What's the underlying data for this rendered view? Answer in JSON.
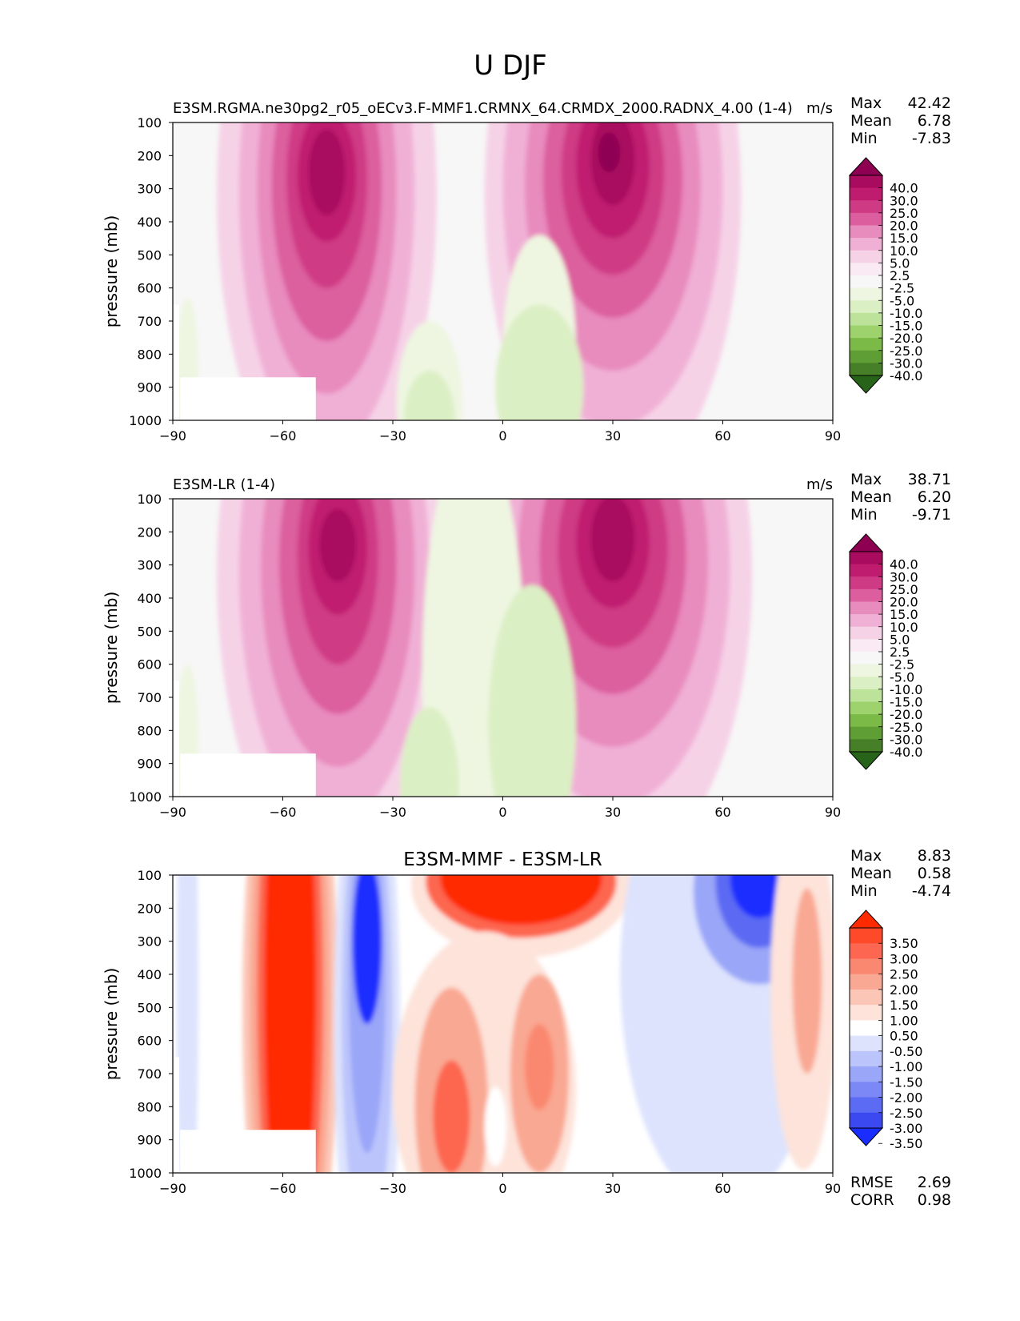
{
  "figure_title": "U DJF",
  "chart_data": [
    {
      "type": "contourf",
      "title": "",
      "left_title": "E3SM.RGMA.ne30pg2_r05_oECv3.F-MMF1.CRMNX_64.CRMDX_2000.RADNX_4.00 (1-4)",
      "units": "m/s",
      "xlabel": "",
      "ylabel": "pressure (mb)",
      "xlim": [
        -90,
        90
      ],
      "ylim": [
        1000,
        100
      ],
      "xticks": [
        "−90",
        "−60",
        "−30",
        "0",
        "30",
        "60",
        "90"
      ],
      "yticks": [
        "100",
        "200",
        "300",
        "400",
        "500",
        "600",
        "700",
        "800",
        "900",
        "1000"
      ],
      "stats": [
        {
          "label": "Max",
          "value": "42.42"
        },
        {
          "label": "Mean",
          "value": "6.78"
        },
        {
          "label": "Min",
          "value": "-7.83"
        }
      ],
      "colorbar_levels": [
        "40.0",
        "30.0",
        "25.0",
        "20.0",
        "15.0",
        "10.0",
        "5.0",
        "2.5",
        "-2.5",
        "-5.0",
        "-10.0",
        "-15.0",
        "-20.0",
        "-25.0",
        "-30.0",
        "-40.0"
      ],
      "colorbar_colors": [
        "#8e0152",
        "#a90b5e",
        "#c01c6f",
        "#cf3a85",
        "#dc5e9e",
        "#e88bbd",
        "#f0b0d5",
        "#f6d2e7",
        "#faeaf3",
        "#f7f7f7",
        "#eef6e1",
        "#dbefc4",
        "#bde39b",
        "#9dd26d",
        "#7cba47",
        "#5f9d35",
        "#467f28",
        "#276419"
      ],
      "jets": [
        {
          "name": "southern jet",
          "lat": -48,
          "p": 260,
          "max": 38
        },
        {
          "name": "northern jet",
          "lat": 30,
          "p": 220,
          "max": 42.4
        }
      ]
    },
    {
      "type": "contourf",
      "title": "",
      "left_title": "E3SM-LR (1-4)",
      "units": "m/s",
      "xlabel": "",
      "ylabel": "pressure (mb)",
      "xlim": [
        -90,
        90
      ],
      "ylim": [
        1000,
        100
      ],
      "xticks": [
        "−90",
        "−60",
        "−30",
        "0",
        "30",
        "60",
        "90"
      ],
      "yticks": [
        "100",
        "200",
        "300",
        "400",
        "500",
        "600",
        "700",
        "800",
        "900",
        "1000"
      ],
      "stats": [
        {
          "label": "Max",
          "value": "38.71"
        },
        {
          "label": "Mean",
          "value": "6.20"
        },
        {
          "label": "Min",
          "value": "-9.71"
        }
      ],
      "colorbar_levels": [
        "40.0",
        "30.0",
        "25.0",
        "20.0",
        "15.0",
        "10.0",
        "5.0",
        "2.5",
        "-2.5",
        "-5.0",
        "-10.0",
        "-15.0",
        "-20.0",
        "-25.0",
        "-30.0",
        "-40.0"
      ],
      "colorbar_colors": [
        "#8e0152",
        "#a90b5e",
        "#c01c6f",
        "#cf3a85",
        "#dc5e9e",
        "#e88bbd",
        "#f0b0d5",
        "#f6d2e7",
        "#faeaf3",
        "#f7f7f7",
        "#eef6e1",
        "#dbefc4",
        "#bde39b",
        "#9dd26d",
        "#7cba47",
        "#5f9d35",
        "#467f28",
        "#276419"
      ],
      "jets": [
        {
          "name": "southern jet",
          "lat": -44,
          "p": 240,
          "max": 35
        },
        {
          "name": "northern jet",
          "lat": 30,
          "p": 230,
          "max": 38.7
        }
      ]
    },
    {
      "type": "contourf",
      "title": "E3SM-MMF - E3SM-LR",
      "left_title": "",
      "units": "",
      "xlabel": "",
      "ylabel": "pressure (mb)",
      "xlim": [
        -90,
        90
      ],
      "ylim": [
        1000,
        100
      ],
      "xticks": [
        "−90",
        "−60",
        "−30",
        "0",
        "30",
        "60",
        "90"
      ],
      "yticks": [
        "100",
        "200",
        "300",
        "400",
        "500",
        "600",
        "700",
        "800",
        "900",
        "1000"
      ],
      "stats": [
        {
          "label": "Max",
          "value": "8.83"
        },
        {
          "label": "Mean",
          "value": "0.58"
        },
        {
          "label": "Min",
          "value": "-4.74"
        }
      ],
      "bottom_stats": [
        {
          "label": "RMSE",
          "value": "2.69"
        },
        {
          "label": "CORR",
          "value": "0.98"
        }
      ],
      "colorbar_levels": [
        "3.50",
        "3.00",
        "2.50",
        "2.00",
        "1.50",
        "1.00",
        "0.50",
        "-0.50",
        "-1.00",
        "-1.50",
        "-2.00",
        "-2.50",
        "-3.00",
        "-3.50"
      ],
      "colorbar_colors": [
        "#ff2a00",
        "#ff4a2a",
        "#fd6650",
        "#fa8870",
        "#f9a893",
        "#fbc6b6",
        "#fde3da",
        "#ffffff",
        "#dde3fd",
        "#bcc5fb",
        "#9aa6f8",
        "#7b88f5",
        "#5c6bf3",
        "#3b49f0",
        "#1a2dff"
      ],
      "features": [
        {
          "name": "positive band",
          "lat": -58,
          "value": 4.0
        },
        {
          "name": "negative band",
          "lat": -37,
          "value": -4.0
        },
        {
          "name": "upper positive",
          "lat": 5,
          "p": 120,
          "value": 4.0
        },
        {
          "name": "upper negative",
          "lat": 70,
          "p": 120,
          "value": -4.5
        }
      ]
    }
  ]
}
